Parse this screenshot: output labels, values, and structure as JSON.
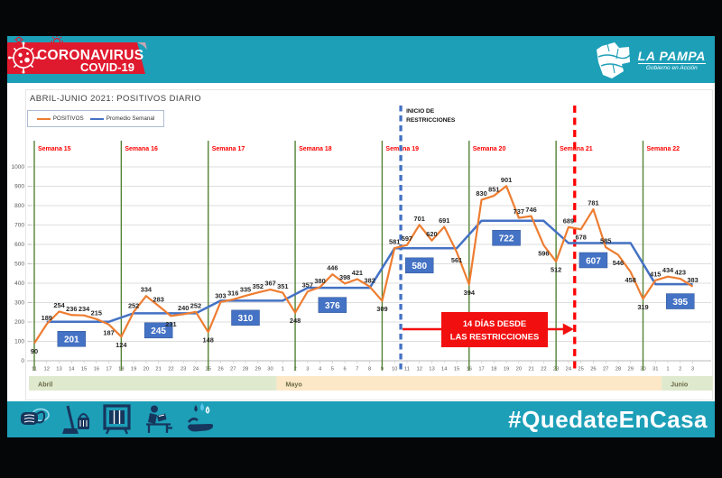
{
  "header": {
    "banner": {
      "line1": "CORONAVIRUS",
      "line2": "COVID-19",
      "color": "#e01a2e"
    },
    "logo": {
      "title": "LA PAMPA",
      "subtitle": "Gobierno en Acción"
    }
  },
  "chart": {
    "title": "ABRIL-JUNIO 2021: POSITIVOS DIARIO",
    "legend": [
      {
        "label": "POSITIVOS",
        "color": "#ED7D31"
      },
      {
        "label": "Promedio Semanal",
        "color": "#4472C4"
      }
    ]
  },
  "chart_data": {
    "type": "line",
    "title": "ABRIL-JUNIO 2021: POSITIVOS DIARIO",
    "ylim": [
      0,
      1000
    ],
    "y_ticks": [
      0,
      100,
      200,
      300,
      400,
      500,
      600,
      700,
      800,
      900,
      1000
    ],
    "grid": true,
    "months": [
      {
        "name": "Abril",
        "day_start": 11,
        "day_end": 30,
        "band_color": "#dfe9cd"
      },
      {
        "name": "Mayo",
        "day_start": 1,
        "day_end": 31,
        "band_color": "#fce8c6"
      },
      {
        "name": "Junio",
        "day_start": 1,
        "day_end": 3,
        "band_color": "#dfe9cd"
      }
    ],
    "series": [
      {
        "name": "POSITIVOS",
        "color": "#ED7D31",
        "values": [
          90,
          189,
          254,
          236,
          234,
          215,
          187,
          124,
          252,
          334,
          283,
          231,
          240,
          252,
          148,
          303,
          316,
          335,
          352,
          367,
          351,
          248,
          357,
          380,
          446,
          398,
          421,
          382,
          309,
          581,
          597,
          701,
          620,
          691,
          561,
          394,
          830,
          851,
          901,
          737,
          746,
          596,
          512,
          689,
          678,
          781,
          585,
          546,
          458,
          319,
          415,
          434,
          423,
          383
        ]
      },
      {
        "name": "Promedio Semanal",
        "color": "#4472C4",
        "style": "weekly_average_step"
      }
    ],
    "weeks": [
      {
        "label": "Semana 15",
        "avg": 201,
        "start_index": 0
      },
      {
        "label": "Semana 16",
        "avg": 245,
        "start_index": 7
      },
      {
        "label": "Semana 17",
        "avg": 310,
        "start_index": 14
      },
      {
        "label": "Semana 18",
        "avg": 376,
        "start_index": 21
      },
      {
        "label": "Semana 19",
        "avg": 580,
        "start_index": 28
      },
      {
        "label": "Semana 20",
        "avg": 722,
        "start_index": 35
      },
      {
        "label": "Semana 21",
        "avg": 607,
        "start_index": 42
      },
      {
        "label": "Semana 22",
        "avg": 395,
        "start_index": 49
      }
    ],
    "week_label_color": "#ff0000",
    "week_line_color": "#548235",
    "label_below_indices": [
      0,
      6,
      7,
      11,
      14,
      21,
      28,
      34,
      35,
      41,
      42,
      44,
      47,
      48,
      49
    ],
    "annotations": {
      "inicio": {
        "text_line1": "INICIO DE",
        "text_line2": "RESTRICCIONES",
        "day_index": 29.5,
        "color": "#4472C4"
      },
      "catorce": {
        "text_line1": "14 DÍAS DESDE",
        "text_line2": "LAS RESTRICCIONES",
        "day_index": 43.5,
        "color": "#ff0000"
      }
    }
  },
  "footer": {
    "hashtag": "#QuedateEnCasa",
    "icons": [
      "face-mask",
      "cleaning",
      "ventilation",
      "remote-work",
      "hand-washing"
    ]
  }
}
